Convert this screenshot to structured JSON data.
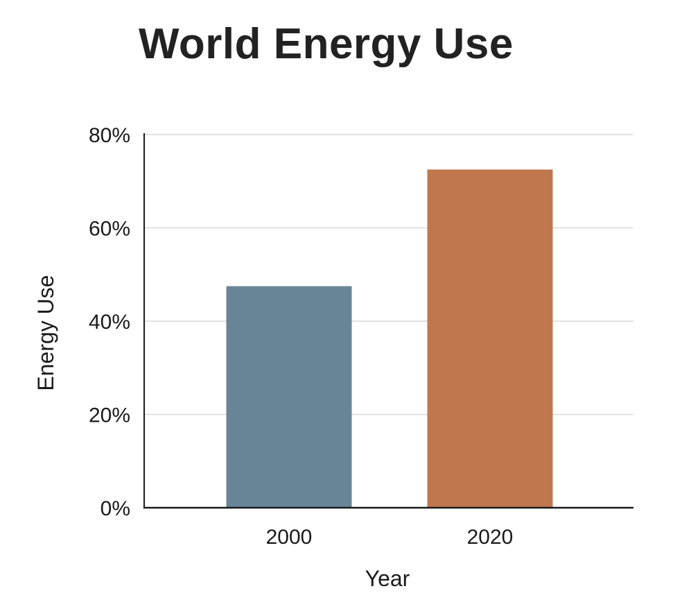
{
  "chart_data": {
    "type": "bar",
    "title": "World Energy Use",
    "xlabel": "Year",
    "ylabel": "Energy Use",
    "categories": [
      "2000",
      "2020"
    ],
    "values": [
      47.5,
      72.5
    ],
    "colors": [
      "#688597",
      "#c1774e"
    ],
    "ylim": [
      0,
      80
    ],
    "yticks": [
      0,
      20,
      40,
      60,
      80
    ],
    "ytick_labels": [
      "0%",
      "20%",
      "40%",
      "60%",
      "80%"
    ],
    "grid": true,
    "legend": "none"
  }
}
